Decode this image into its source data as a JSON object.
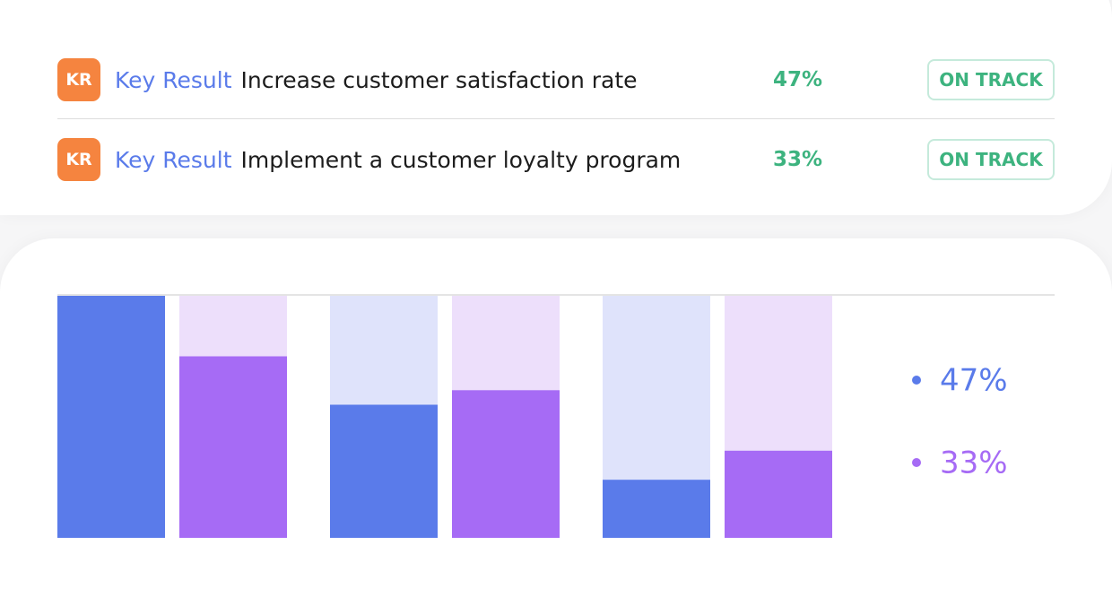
{
  "key_results": [
    {
      "badge": "KR",
      "label": "Key Result",
      "title": "Increase customer satisfaction rate",
      "progress": "47%",
      "status": "ON TRACK"
    },
    {
      "badge": "KR",
      "label": "Key Result",
      "title": "Implement a customer loyalty program",
      "progress": "33%",
      "status": "ON TRACK"
    }
  ],
  "chart_data": {
    "type": "bar",
    "categories": [
      null,
      null,
      null
    ],
    "series": [
      {
        "name": "47%",
        "color": "#5a7bea",
        "values": [
          100,
          55,
          24
        ]
      },
      {
        "name": "33%",
        "color": "#a66bf5",
        "values": [
          75,
          61,
          36
        ]
      }
    ],
    "ylim": [
      0,
      100
    ]
  }
}
